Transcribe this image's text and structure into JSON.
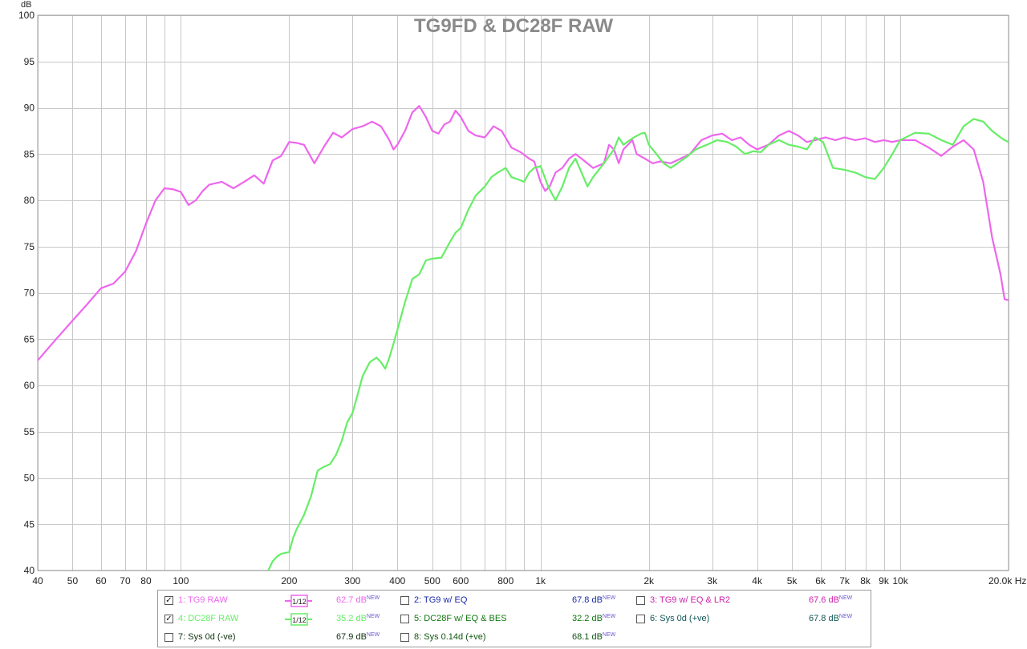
{
  "chart_data": {
    "type": "line",
    "title": "TG9FD & DC28F RAW",
    "ylabel": "dB",
    "xlabel": "",
    "x_scale": "log",
    "xlim": [
      40,
      20000
    ],
    "ylim": [
      40,
      100
    ],
    "grid": true,
    "y_ticks": [
      "40",
      "45",
      "50",
      "55",
      "60",
      "65",
      "70",
      "75",
      "80",
      "85",
      "90",
      "95",
      "100"
    ],
    "x_ticks": [
      {
        "v": 40,
        "label": "40"
      },
      {
        "v": 50,
        "label": "50"
      },
      {
        "v": 60,
        "label": "60"
      },
      {
        "v": 70,
        "label": "70"
      },
      {
        "v": 80,
        "label": "80"
      },
      {
        "v": 100,
        "label": "100"
      },
      {
        "v": 200,
        "label": "200"
      },
      {
        "v": 300,
        "label": "300"
      },
      {
        "v": 400,
        "label": "400"
      },
      {
        "v": 500,
        "label": "500"
      },
      {
        "v": 600,
        "label": "600"
      },
      {
        "v": 800,
        "label": "800"
      },
      {
        "v": 1000,
        "label": "1k"
      },
      {
        "v": 2000,
        "label": "2k"
      },
      {
        "v": 3000,
        "label": "3k"
      },
      {
        "v": 4000,
        "label": "4k"
      },
      {
        "v": 5000,
        "label": "5k"
      },
      {
        "v": 6000,
        "label": "6k"
      },
      {
        "v": 7000,
        "label": "7k"
      },
      {
        "v": 8000,
        "label": "8k"
      },
      {
        "v": 9000,
        "label": "9k"
      },
      {
        "v": 10000,
        "label": "10k"
      },
      {
        "v": 20000,
        "label": "20.0k Hz"
      }
    ],
    "series": [
      {
        "name": "1: TG9 RAW",
        "color": "#ee66ee",
        "points": [
          [
            40,
            62.7
          ],
          [
            45,
            65
          ],
          [
            50,
            67
          ],
          [
            55,
            68.8
          ],
          [
            60,
            70.5
          ],
          [
            65,
            71
          ],
          [
            70,
            72.3
          ],
          [
            75,
            74.5
          ],
          [
            80,
            77.5
          ],
          [
            85,
            80
          ],
          [
            90,
            81.3
          ],
          [
            95,
            81.2
          ],
          [
            100,
            80.9
          ],
          [
            105,
            79.5
          ],
          [
            110,
            80
          ],
          [
            115,
            81
          ],
          [
            120,
            81.7
          ],
          [
            130,
            82
          ],
          [
            140,
            81.3
          ],
          [
            150,
            82
          ],
          [
            160,
            82.7
          ],
          [
            170,
            81.8
          ],
          [
            180,
            84.3
          ],
          [
            190,
            84.8
          ],
          [
            200,
            86.3
          ],
          [
            210,
            86.2
          ],
          [
            220,
            86
          ],
          [
            235,
            84
          ],
          [
            250,
            85.8
          ],
          [
            265,
            87.3
          ],
          [
            280,
            86.8
          ],
          [
            300,
            87.7
          ],
          [
            320,
            88
          ],
          [
            340,
            88.5
          ],
          [
            360,
            88
          ],
          [
            380,
            86.5
          ],
          [
            390,
            85.5
          ],
          [
            400,
            86
          ],
          [
            420,
            87.5
          ],
          [
            440,
            89.5
          ],
          [
            460,
            90.2
          ],
          [
            480,
            89
          ],
          [
            500,
            87.5
          ],
          [
            520,
            87.2
          ],
          [
            540,
            88.2
          ],
          [
            560,
            88.5
          ],
          [
            580,
            89.7
          ],
          [
            600,
            89
          ],
          [
            630,
            87.5
          ],
          [
            660,
            87
          ],
          [
            700,
            86.8
          ],
          [
            740,
            88
          ],
          [
            780,
            87.5
          ],
          [
            830,
            85.7
          ],
          [
            880,
            85.2
          ],
          [
            930,
            84.5
          ],
          [
            960,
            84.2
          ],
          [
            1000,
            82
          ],
          [
            1030,
            81
          ],
          [
            1060,
            81.5
          ],
          [
            1100,
            83
          ],
          [
            1150,
            83.5
          ],
          [
            1200,
            84.5
          ],
          [
            1250,
            85
          ],
          [
            1300,
            84.5
          ],
          [
            1400,
            83.5
          ],
          [
            1500,
            84
          ],
          [
            1550,
            86
          ],
          [
            1600,
            85.5
          ],
          [
            1650,
            84
          ],
          [
            1700,
            85.5
          ],
          [
            1800,
            86.5
          ],
          [
            1850,
            85
          ],
          [
            1950,
            84.5
          ],
          [
            2050,
            84
          ],
          [
            2150,
            84.2
          ],
          [
            2300,
            84
          ],
          [
            2450,
            84.5
          ],
          [
            2600,
            85
          ],
          [
            2800,
            86.5
          ],
          [
            3000,
            87
          ],
          [
            3200,
            87.2
          ],
          [
            3400,
            86.5
          ],
          [
            3600,
            86.8
          ],
          [
            3800,
            86
          ],
          [
            4000,
            85.5
          ],
          [
            4300,
            86
          ],
          [
            4600,
            87
          ],
          [
            4900,
            87.5
          ],
          [
            5200,
            87
          ],
          [
            5500,
            86.3
          ],
          [
            5800,
            86.5
          ],
          [
            6200,
            86.8
          ],
          [
            6600,
            86.5
          ],
          [
            7000,
            86.8
          ],
          [
            7500,
            86.5
          ],
          [
            8000,
            86.7
          ],
          [
            8500,
            86.3
          ],
          [
            9000,
            86.5
          ],
          [
            9500,
            86.3
          ],
          [
            10000,
            86.5
          ],
          [
            11000,
            86.5
          ],
          [
            12000,
            85.7
          ],
          [
            13000,
            84.8
          ],
          [
            14000,
            85.8
          ],
          [
            15000,
            86.5
          ],
          [
            16000,
            85.5
          ],
          [
            17000,
            82
          ],
          [
            18000,
            76
          ],
          [
            19000,
            72
          ],
          [
            19500,
            69.3
          ],
          [
            20000,
            69.2
          ]
        ]
      },
      {
        "name": "4: DC28F RAW",
        "color": "#66ee66",
        "points": [
          [
            175,
            40
          ],
          [
            180,
            41
          ],
          [
            185,
            41.5
          ],
          [
            190,
            41.8
          ],
          [
            200,
            42
          ],
          [
            205,
            43.5
          ],
          [
            210,
            44.5
          ],
          [
            220,
            46
          ],
          [
            230,
            48
          ],
          [
            240,
            50.8
          ],
          [
            250,
            51.2
          ],
          [
            260,
            51.5
          ],
          [
            270,
            52.5
          ],
          [
            280,
            54
          ],
          [
            290,
            56
          ],
          [
            300,
            57
          ],
          [
            310,
            59
          ],
          [
            320,
            61
          ],
          [
            335,
            62.5
          ],
          [
            350,
            63
          ],
          [
            360,
            62.5
          ],
          [
            370,
            61.8
          ],
          [
            380,
            63
          ],
          [
            390,
            64.5
          ],
          [
            400,
            66
          ],
          [
            420,
            69
          ],
          [
            440,
            71.5
          ],
          [
            460,
            72
          ],
          [
            480,
            73.5
          ],
          [
            500,
            73.7
          ],
          [
            530,
            73.8
          ],
          [
            560,
            75.5
          ],
          [
            580,
            76.5
          ],
          [
            600,
            77
          ],
          [
            630,
            79
          ],
          [
            660,
            80.5
          ],
          [
            700,
            81.5
          ],
          [
            730,
            82.5
          ],
          [
            760,
            83
          ],
          [
            800,
            83.5
          ],
          [
            830,
            82.5
          ],
          [
            860,
            82.3
          ],
          [
            900,
            82
          ],
          [
            930,
            83
          ],
          [
            960,
            83.5
          ],
          [
            1000,
            83.7
          ],
          [
            1050,
            81.5
          ],
          [
            1100,
            80
          ],
          [
            1150,
            81.5
          ],
          [
            1200,
            83.5
          ],
          [
            1250,
            84.5
          ],
          [
            1300,
            83
          ],
          [
            1350,
            81.5
          ],
          [
            1400,
            82.5
          ],
          [
            1500,
            84
          ],
          [
            1600,
            85.5
          ],
          [
            1650,
            86.8
          ],
          [
            1700,
            86
          ],
          [
            1800,
            86.7
          ],
          [
            1900,
            87.2
          ],
          [
            1950,
            87.3
          ],
          [
            2000,
            86
          ],
          [
            2100,
            85
          ],
          [
            2200,
            84
          ],
          [
            2300,
            83.5
          ],
          [
            2400,
            84
          ],
          [
            2550,
            84.7
          ],
          [
            2700,
            85.5
          ],
          [
            2900,
            86
          ],
          [
            3100,
            86.5
          ],
          [
            3300,
            86.3
          ],
          [
            3500,
            85.8
          ],
          [
            3700,
            85
          ],
          [
            3900,
            85.3
          ],
          [
            4100,
            85.2
          ],
          [
            4300,
            86
          ],
          [
            4600,
            86.5
          ],
          [
            4900,
            86
          ],
          [
            5200,
            85.8
          ],
          [
            5500,
            85.5
          ],
          [
            5800,
            86.8
          ],
          [
            6100,
            86.3
          ],
          [
            6500,
            83.5
          ],
          [
            7000,
            83.3
          ],
          [
            7500,
            83
          ],
          [
            8000,
            82.5
          ],
          [
            8500,
            82.3
          ],
          [
            9000,
            83.5
          ],
          [
            9500,
            85
          ],
          [
            10000,
            86.5
          ],
          [
            11000,
            87.3
          ],
          [
            12000,
            87.2
          ],
          [
            13000,
            86.5
          ],
          [
            14000,
            86
          ],
          [
            15000,
            88
          ],
          [
            16000,
            88.8
          ],
          [
            17000,
            88.5
          ],
          [
            18000,
            87.5
          ],
          [
            19000,
            86.8
          ],
          [
            19500,
            86.5
          ],
          [
            20000,
            86.3
          ]
        ]
      }
    ]
  },
  "legend": [
    {
      "label": "1: TG9 RAW",
      "checked": true,
      "mark": "✓",
      "color": "#ee66ee",
      "smoothing": "1/12",
      "value": "62.7 dB",
      "new": "NEW",
      "valcolor": "#ee66ee"
    },
    {
      "label": "2: TG9 w/ EQ",
      "checked": false,
      "mark": "",
      "color": "#1a2aa8",
      "smoothing": "",
      "value": "67.8 dB",
      "new": "NEW",
      "valcolor": "#1a2aa8"
    },
    {
      "label": "3: TG9 w/ EQ & LR2",
      "checked": false,
      "mark": "",
      "color": "#cc22aa",
      "smoothing": "",
      "value": "67.6 dB",
      "new": "NEW",
      "valcolor": "#cc22aa"
    },
    {
      "label": "4: DC28F RAW",
      "checked": true,
      "mark": "✓",
      "color": "#66ee66",
      "smoothing": "1/12",
      "value": "35.2 dB",
      "new": "NEW",
      "valcolor": "#66ee66"
    },
    {
      "label": "5: DC28F w/ EQ & BES",
      "checked": false,
      "mark": "",
      "color": "#117711",
      "smoothing": "",
      "value": "32.2 dB",
      "new": "NEW",
      "valcolor": "#117711"
    },
    {
      "label": "6: Sys 0d (+ve)",
      "checked": false,
      "mark": "",
      "color": "#115555",
      "smoothing": "",
      "value": "67.8 dB",
      "new": "NEW",
      "valcolor": "#115555"
    },
    {
      "label": "7: Sys 0d (-ve)",
      "checked": false,
      "mark": "",
      "color": "#113311",
      "smoothing": "",
      "value": "67.9 dB",
      "new": "NEW",
      "valcolor": "#113311"
    },
    {
      "label": "8: Sys 0.14d (+ve)",
      "checked": false,
      "mark": "",
      "color": "#115511",
      "smoothing": "",
      "value": "68.1 dB",
      "new": "NEW",
      "valcolor": "#115511"
    }
  ]
}
